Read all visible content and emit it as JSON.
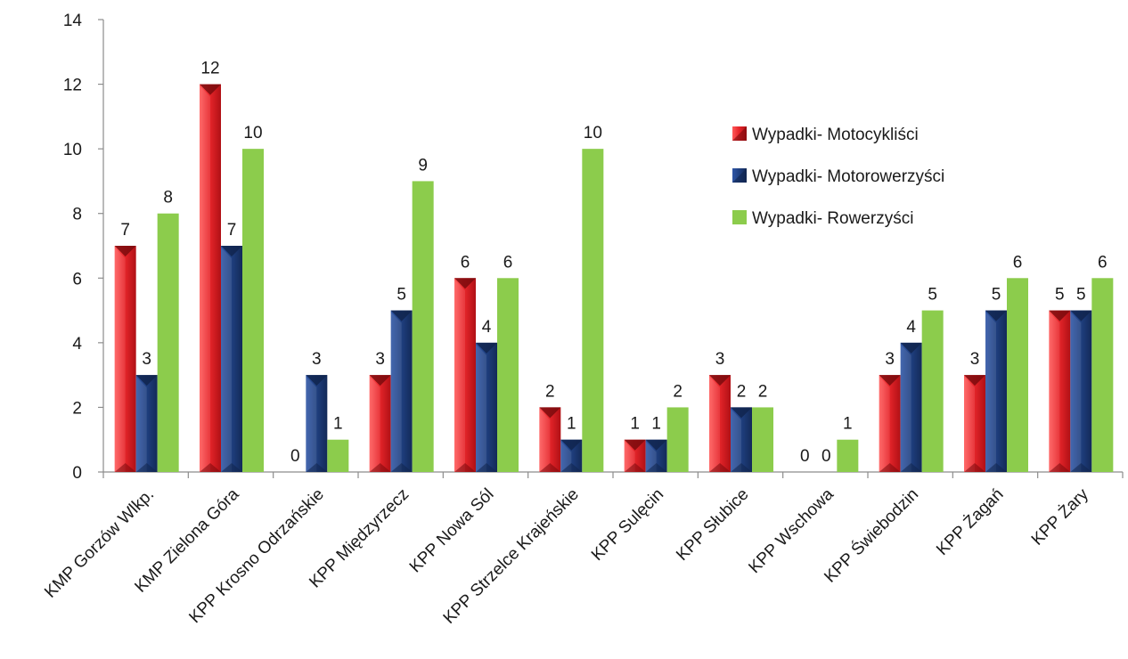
{
  "chart_data": {
    "type": "bar",
    "categories": [
      "KMP Gorzów Wlkp.",
      "KMP Zielona Góra",
      "KPP Krosno Odrzańskie",
      "KPP Międzyrzecz",
      "KPP Nowa Sól",
      "KPP Strzelce Krajeńskie",
      "KPP Sulęcin",
      "KPP Słubice",
      "KPP Wschowa",
      "KPP Świebodzin",
      "KPP Żagań",
      "KPP Żary"
    ],
    "series": [
      {
        "name": "Wypadki- Motocykliści",
        "color": "#e8262b",
        "values": [
          7,
          12,
          0,
          3,
          6,
          2,
          1,
          3,
          0,
          3,
          3,
          5
        ]
      },
      {
        "name": "Wypadki- Motorowerzyści",
        "color": "#1f3f7f",
        "values": [
          3,
          7,
          3,
          5,
          4,
          1,
          1,
          2,
          0,
          4,
          5,
          5
        ]
      },
      {
        "name": "Wypadki- Rowerzyści",
        "color": "#8ccc4c",
        "values": [
          8,
          10,
          1,
          9,
          6,
          10,
          2,
          2,
          1,
          5,
          6,
          6
        ]
      }
    ],
    "ylim": [
      0,
      14
    ],
    "yticks": [
      "0",
      "2",
      "4",
      "6",
      "8",
      "10",
      "12",
      "14"
    ],
    "grid": false,
    "legend_position": "top-right",
    "title": "",
    "xlabel": "",
    "ylabel": ""
  }
}
